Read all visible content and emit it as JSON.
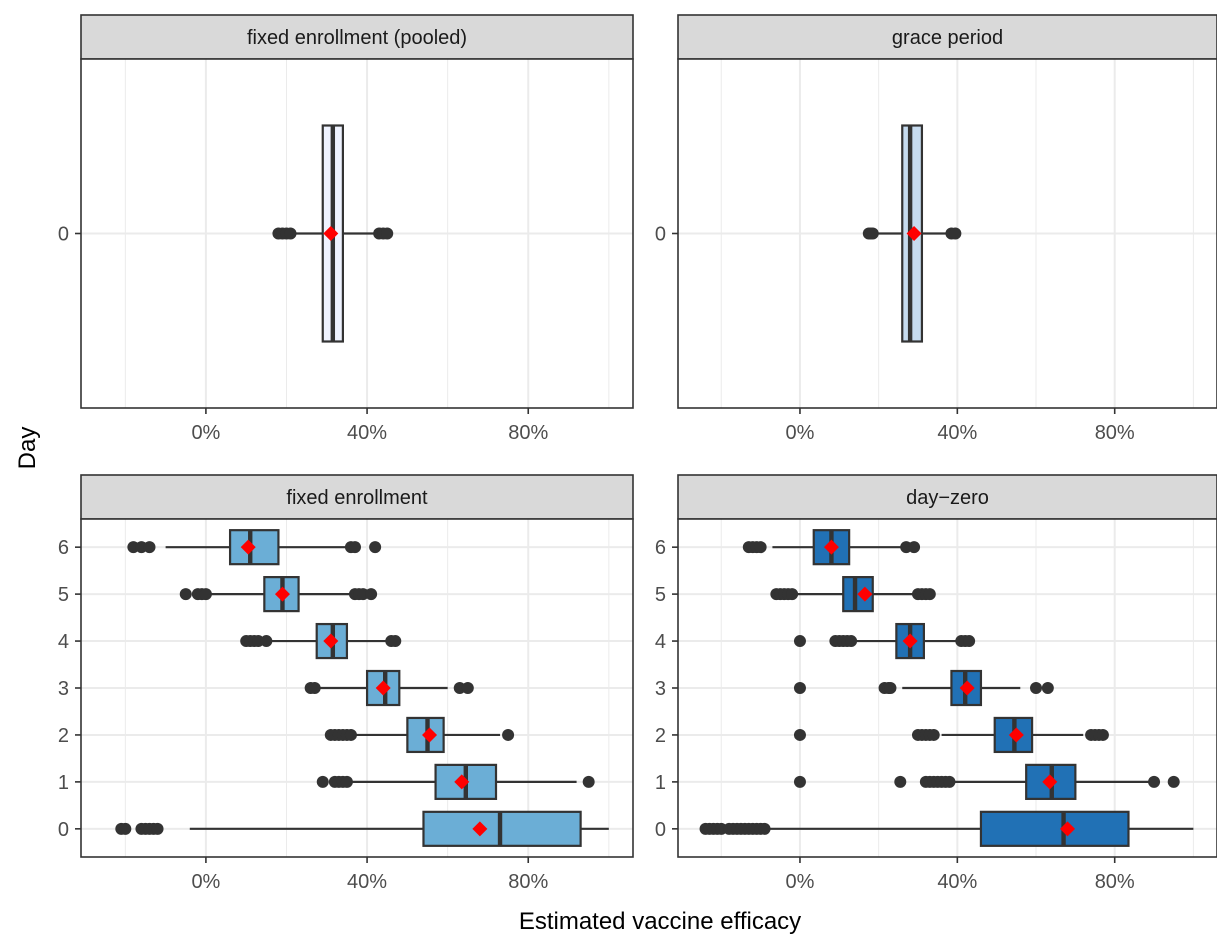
{
  "chart_data": {
    "type": "boxplot",
    "xlabel": "Estimated vaccine efficacy",
    "ylabel": "Day",
    "x_ticks": [
      "0%",
      "40%",
      "80%"
    ],
    "x_tick_values": [
      0,
      40,
      80
    ],
    "xlim": [
      -31,
      106
    ],
    "grid": true,
    "mean_marker_color": "#ff0000",
    "panels": [
      {
        "title": "fixed enrollment (pooled)",
        "fill": "#eff3ff",
        "days": [
          {
            "day": 0,
            "whisker_low": 18,
            "q1": 29,
            "median": 31.5,
            "q3": 34,
            "whisker_high": 45,
            "mean": 31,
            "outliers": [
              18,
              19,
              20,
              21,
              43,
              44,
              45
            ]
          }
        ]
      },
      {
        "title": "grace period",
        "fill": "#c6dbef",
        "days": [
          {
            "day": 0,
            "whisker_low": 17.5,
            "q1": 26,
            "median": 28,
            "q3": 31,
            "whisker_high": 39.5,
            "mean": 29,
            "outliers": [
              17.5,
              18,
              18.5,
              38.5,
              39.5
            ]
          }
        ]
      },
      {
        "title": "fixed enrollment",
        "fill": "#6baed6",
        "days": [
          {
            "day": 6,
            "whisker_low": -10,
            "q1": 6,
            "median": 11,
            "q3": 18,
            "whisker_high": 37,
            "mean": 10.5,
            "outliers": [
              -18,
              -16,
              -14,
              36,
              37,
              42
            ]
          },
          {
            "day": 5,
            "whisker_low": -3,
            "q1": 14.5,
            "median": 19,
            "q3": 23,
            "whisker_high": 37,
            "mean": 19,
            "outliers": [
              -5,
              -2,
              -1,
              0,
              37,
              38,
              39,
              41
            ]
          },
          {
            "day": 4,
            "whisker_low": 16,
            "q1": 27.5,
            "median": 31.5,
            "q3": 35,
            "whisker_high": 45,
            "mean": 31,
            "outliers": [
              10,
              11,
              12,
              13,
              15,
              46,
              47
            ]
          },
          {
            "day": 3,
            "whisker_low": 28,
            "q1": 40,
            "median": 44.5,
            "q3": 48,
            "whisker_high": 60,
            "mean": 44,
            "outliers": [
              26,
              27,
              63,
              65
            ]
          },
          {
            "day": 2,
            "whisker_low": 37,
            "q1": 50,
            "median": 55,
            "q3": 59,
            "whisker_high": 73,
            "mean": 55.5,
            "outliers": [
              31,
              32,
              33,
              34,
              35,
              36,
              75
            ]
          },
          {
            "day": 1,
            "whisker_low": 36,
            "q1": 57,
            "median": 64.5,
            "q3": 72,
            "whisker_high": 92,
            "mean": 63.5,
            "outliers": [
              29,
              32,
              33,
              34,
              35,
              95
            ]
          },
          {
            "day": 0,
            "whisker_low": -4,
            "q1": 54,
            "median": 73,
            "q3": 93,
            "whisker_high": 100,
            "mean": 68,
            "outliers": [
              -21,
              -20,
              -16,
              -15,
              -14,
              -13,
              -12
            ]
          }
        ]
      },
      {
        "title": "day−zero",
        "fill": "#2171b5",
        "days": [
          {
            "day": 6,
            "whisker_low": -7,
            "q1": 3.5,
            "median": 8,
            "q3": 12.5,
            "whisker_high": 26,
            "mean": 8,
            "outliers": [
              -13,
              -12,
              -11,
              -10,
              27,
              29
            ]
          },
          {
            "day": 5,
            "whisker_low": -4,
            "q1": 11,
            "median": 14,
            "q3": 18.5,
            "whisker_high": 30,
            "mean": 16.5,
            "outliers": [
              -6,
              -5,
              -4,
              -3,
              -2,
              30,
              31,
              32,
              33
            ]
          },
          {
            "day": 4,
            "whisker_low": 13,
            "q1": 24.5,
            "median": 28,
            "q3": 31.5,
            "whisker_high": 41,
            "mean": 28,
            "outliers": [
              0,
              9,
              10,
              11,
              12,
              13,
              41,
              42,
              43
            ]
          },
          {
            "day": 3,
            "whisker_low": 26,
            "q1": 38.5,
            "median": 42,
            "q3": 46,
            "whisker_high": 56,
            "mean": 42.5,
            "outliers": [
              0,
              21.5,
              22.5,
              23,
              60,
              63
            ]
          },
          {
            "day": 2,
            "whisker_low": 36,
            "q1": 49.5,
            "median": 54.5,
            "q3": 59,
            "whisker_high": 72,
            "mean": 55,
            "outliers": [
              0,
              30,
              31,
              32,
              33,
              34,
              74,
              75,
              76,
              77
            ]
          },
          {
            "day": 1,
            "whisker_low": 39,
            "q1": 57.5,
            "median": 64,
            "q3": 70,
            "whisker_high": 90,
            "mean": 63.5,
            "outliers": [
              0,
              25.5,
              32,
              33,
              34,
              35,
              36,
              37,
              38,
              90,
              95
            ]
          },
          {
            "day": 0,
            "whisker_low": -8,
            "q1": 46,
            "median": 67,
            "q3": 83.5,
            "whisker_high": 100,
            "mean": 68,
            "outliers": [
              -24,
              -23,
              -22,
              -21,
              -20,
              -18,
              -17,
              -16,
              -15,
              -14,
              -13,
              -12,
              -11,
              -10,
              -9
            ]
          }
        ]
      }
    ]
  }
}
